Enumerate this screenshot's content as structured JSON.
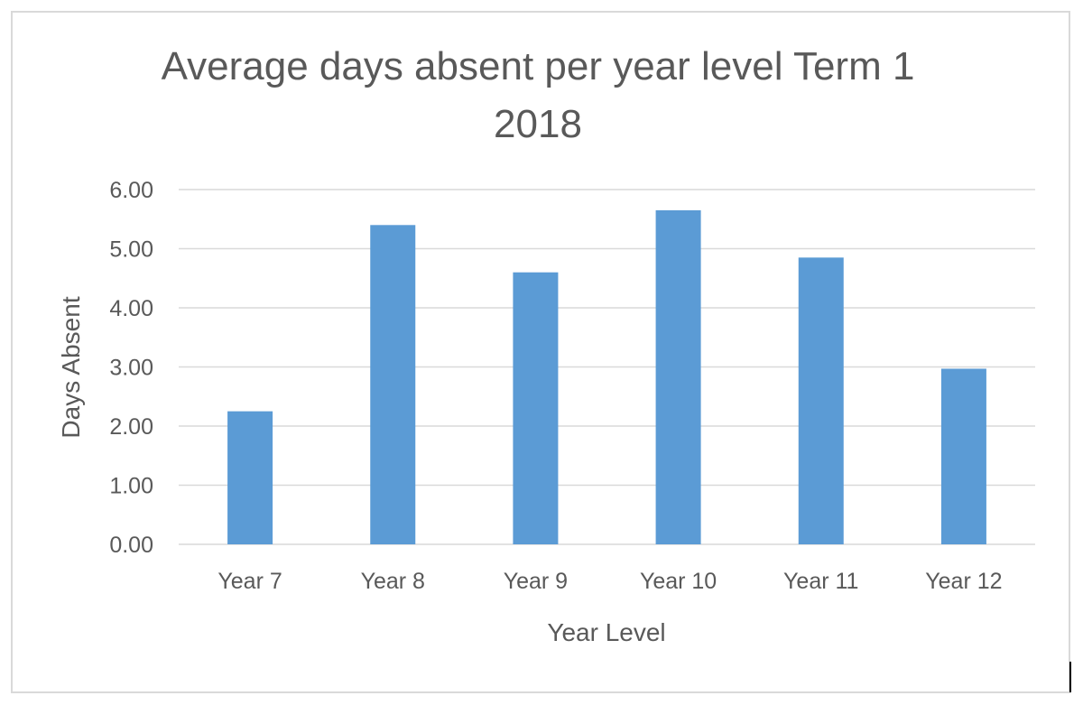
{
  "chart_data": {
    "type": "bar",
    "title_lines": [
      "Average days absent per year level Term 1",
      "2018"
    ],
    "xlabel": "Year Level",
    "ylabel": "Days Absent",
    "categories": [
      "Year 7",
      "Year 8",
      "Year 9",
      "Year 10",
      "Year 11",
      "Year 12"
    ],
    "values": [
      2.25,
      5.4,
      4.6,
      5.65,
      4.85,
      2.97
    ],
    "ylim": [
      0,
      6
    ],
    "yticks": [
      "0.00",
      "1.00",
      "2.00",
      "3.00",
      "4.00",
      "5.00",
      "6.00"
    ],
    "grid": true,
    "legend": "none",
    "bar_color": "#5B9BD5"
  }
}
